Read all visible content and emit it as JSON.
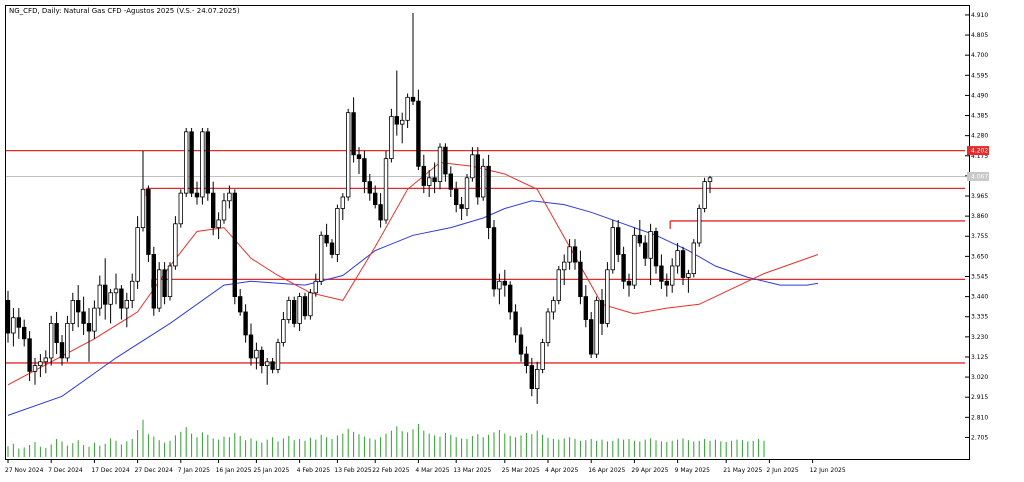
{
  "window": {
    "title": "NG_CFD, Daily:  Natural Gas CFD -Agustos 2025 (V.S.- 24.07.2025)"
  },
  "colors": {
    "background": "#ffffff",
    "candle_up_body": "#ffffff",
    "candle_down_body": "#000000",
    "candle_outline": "#000000",
    "ma_fast": "#e8302a",
    "ma_slow": "#2d3bd8",
    "level_line": "#e52a2a",
    "current_price_line": "#c0c0c0",
    "volume": "#2ca02c",
    "highlight_label_bg": "#e52a2a",
    "current_label_bg": "#c8c8c8"
  },
  "chart_data": {
    "type": "candlestick",
    "title": "NG_CFD, Daily:  Natural Gas CFD -Agustos 2025 (V.S.- 24.07.2025)",
    "ylim": [
      2.65,
      4.92
    ],
    "y_ticks": [
      "4.910",
      "4.805",
      "4.700",
      "4.595",
      "4.490",
      "4.385",
      "4.280",
      "4.175",
      "4.070",
      "3.965",
      "3.860",
      "3.755",
      "3.650",
      "3.545",
      "3.440",
      "3.335",
      "3.230",
      "3.125",
      "3.020",
      "2.915",
      "2.810",
      "2.705"
    ],
    "highlighted_price_label": "4.202",
    "current_price_label": "4.067",
    "x_labels": [
      {
        "label": "27 Nov 2024",
        "index": 0
      },
      {
        "label": "7 Dec 2024",
        "index": 8
      },
      {
        "label": "17 Dec 2024",
        "index": 16
      },
      {
        "label": "27 Dec 2024",
        "index": 24
      },
      {
        "label": "7 Jan 2025",
        "index": 32
      },
      {
        "label": "16 Jan 2025",
        "index": 39
      },
      {
        "label": "25 Jan 2025",
        "index": 46
      },
      {
        "label": "4 Feb 2025",
        "index": 54
      },
      {
        "label": "13 Feb 2025",
        "index": 61
      },
      {
        "label": "22 Feb 2025",
        "index": 68
      },
      {
        "label": "4 Mar 2025",
        "index": 76
      },
      {
        "label": "13 Mar 2025",
        "index": 83
      },
      {
        "label": "25 Mar 2025",
        "index": 92
      },
      {
        "label": "4 Apr 2025",
        "index": 100
      },
      {
        "label": "16 Apr 2025",
        "index": 108
      },
      {
        "label": "29 Apr 2025",
        "index": 116
      },
      {
        "label": "9 May 2025",
        "index": 124
      },
      {
        "label": "21 May 2025",
        "index": 133
      },
      {
        "label": "2 Jun 2025",
        "index": 141
      },
      {
        "label": "12 Jun 2025",
        "index": 149
      }
    ],
    "horizontal_levels": [
      {
        "price": 4.202,
        "from_index": 0
      },
      {
        "price": 4.005,
        "from_index": 26
      },
      {
        "price": 3.835,
        "from_index": 123
      },
      {
        "price": 3.53,
        "from_index": 27
      },
      {
        "price": 3.094,
        "from_index": 0
      }
    ],
    "series": [
      {
        "name": "",
        "kind": "ohlc",
        "values": [
          [
            3.42,
            3.47,
            3.2,
            3.25
          ],
          [
            3.25,
            3.38,
            3.18,
            3.33
          ],
          [
            3.33,
            3.38,
            3.22,
            3.28
          ],
          [
            3.28,
            3.32,
            3.18,
            3.22
          ],
          [
            3.22,
            3.26,
            3.0,
            3.05
          ],
          [
            3.05,
            3.12,
            2.98,
            3.08
          ],
          [
            3.08,
            3.14,
            3.02,
            3.1
          ],
          [
            3.1,
            3.16,
            3.04,
            3.12
          ],
          [
            3.12,
            3.34,
            3.08,
            3.3
          ],
          [
            3.3,
            3.36,
            3.14,
            3.2
          ],
          [
            3.2,
            3.24,
            3.08,
            3.12
          ],
          [
            3.12,
            3.34,
            3.1,
            3.3
          ],
          [
            3.3,
            3.46,
            3.26,
            3.42
          ],
          [
            3.42,
            3.5,
            3.28,
            3.36
          ],
          [
            3.36,
            3.44,
            3.24,
            3.3
          ],
          [
            3.3,
            3.38,
            3.1,
            3.26
          ],
          [
            3.26,
            3.42,
            3.22,
            3.38
          ],
          [
            3.38,
            3.55,
            3.34,
            3.5
          ],
          [
            3.5,
            3.64,
            3.32,
            3.4
          ],
          [
            3.4,
            3.48,
            3.3,
            3.46
          ],
          [
            3.46,
            3.56,
            3.4,
            3.48
          ],
          [
            3.48,
            3.5,
            3.32,
            3.38
          ],
          [
            3.38,
            3.46,
            3.28,
            3.42
          ],
          [
            3.42,
            3.56,
            3.38,
            3.52
          ],
          [
            3.52,
            3.86,
            3.48,
            3.8
          ],
          [
            3.8,
            4.2,
            3.78,
            4.0
          ],
          [
            4.0,
            4.02,
            3.62,
            3.66
          ],
          [
            3.66,
            3.7,
            3.34,
            3.38
          ],
          [
            3.38,
            3.62,
            3.36,
            3.58
          ],
          [
            3.58,
            3.62,
            3.4,
            3.44
          ],
          [
            3.44,
            3.62,
            3.42,
            3.6
          ],
          [
            3.6,
            3.86,
            3.58,
            3.82
          ],
          [
            3.82,
            4.0,
            3.8,
            3.98
          ],
          [
            3.98,
            4.32,
            3.96,
            4.3
          ],
          [
            4.3,
            4.32,
            3.96,
            3.98
          ],
          [
            3.98,
            4.04,
            3.92,
            3.96
          ],
          [
            3.96,
            4.32,
            3.92,
            4.3
          ],
          [
            4.3,
            4.32,
            3.94,
            3.98
          ],
          [
            3.98,
            4.04,
            3.76,
            3.8
          ],
          [
            3.8,
            3.88,
            3.74,
            3.84
          ],
          [
            3.84,
            3.98,
            3.82,
            3.94
          ],
          [
            3.94,
            4.02,
            3.9,
            3.98
          ],
          [
            3.98,
            4.0,
            3.4,
            3.44
          ],
          [
            3.44,
            3.48,
            3.34,
            3.36
          ],
          [
            3.36,
            3.4,
            3.2,
            3.24
          ],
          [
            3.24,
            3.3,
            3.08,
            3.12
          ],
          [
            3.12,
            3.2,
            3.06,
            3.16
          ],
          [
            3.16,
            3.18,
            3.04,
            3.08
          ],
          [
            3.08,
            3.12,
            2.98,
            3.1
          ],
          [
            3.1,
            3.12,
            3.04,
            3.06
          ],
          [
            3.06,
            3.22,
            3.04,
            3.2
          ],
          [
            3.2,
            3.36,
            3.18,
            3.32
          ],
          [
            3.32,
            3.44,
            3.3,
            3.42
          ],
          [
            3.42,
            3.44,
            3.28,
            3.3
          ],
          [
            3.3,
            3.46,
            3.26,
            3.44
          ],
          [
            3.44,
            3.46,
            3.32,
            3.34
          ],
          [
            3.34,
            3.48,
            3.32,
            3.46
          ],
          [
            3.46,
            3.56,
            3.44,
            3.52
          ],
          [
            3.52,
            3.78,
            3.5,
            3.76
          ],
          [
            3.76,
            3.82,
            3.7,
            3.72
          ],
          [
            3.72,
            3.74,
            3.64,
            3.66
          ],
          [
            3.66,
            3.92,
            3.62,
            3.9
          ],
          [
            3.9,
            3.98,
            3.84,
            3.96
          ],
          [
            3.96,
            4.42,
            3.94,
            4.4
          ],
          [
            4.4,
            4.48,
            4.14,
            4.18
          ],
          [
            4.18,
            4.22,
            4.08,
            4.16
          ],
          [
            4.16,
            4.2,
            3.98,
            4.04
          ],
          [
            4.04,
            4.08,
            3.94,
            3.98
          ],
          [
            3.98,
            4.02,
            3.9,
            3.92
          ],
          [
            3.92,
            3.98,
            3.8,
            3.84
          ],
          [
            3.84,
            4.2,
            3.82,
            4.16
          ],
          [
            4.16,
            4.42,
            4.14,
            4.38
          ],
          [
            4.38,
            4.62,
            4.28,
            4.34
          ],
          [
            4.34,
            4.4,
            4.24,
            4.36
          ],
          [
            4.36,
            4.5,
            4.32,
            4.48
          ],
          [
            4.48,
            4.92,
            4.44,
            4.46
          ],
          [
            4.46,
            4.52,
            4.1,
            4.12
          ],
          [
            4.12,
            4.18,
            3.98,
            4.02
          ],
          [
            4.02,
            4.1,
            3.96,
            4.06
          ],
          [
            4.06,
            4.14,
            3.98,
            4.04
          ],
          [
            4.04,
            4.24,
            4.0,
            4.22
          ],
          [
            4.22,
            4.24,
            4.04,
            4.08
          ],
          [
            4.08,
            4.12,
            3.96,
            4.0
          ],
          [
            4.0,
            4.04,
            3.88,
            3.92
          ],
          [
            3.92,
            3.96,
            3.84,
            3.9
          ],
          [
            3.9,
            4.08,
            3.86,
            4.06
          ],
          [
            4.06,
            4.22,
            4.04,
            4.18
          ],
          [
            4.18,
            4.22,
            3.92,
            3.96
          ],
          [
            3.96,
            4.16,
            3.94,
            4.12
          ],
          [
            4.12,
            4.18,
            3.74,
            3.8
          ],
          [
            3.8,
            3.84,
            3.44,
            3.48
          ],
          [
            3.48,
            3.56,
            3.4,
            3.52
          ],
          [
            3.52,
            3.58,
            3.44,
            3.5
          ],
          [
            3.5,
            3.52,
            3.32,
            3.36
          ],
          [
            3.36,
            3.4,
            3.2,
            3.24
          ],
          [
            3.24,
            3.28,
            3.1,
            3.14
          ],
          [
            3.14,
            3.18,
            3.04,
            3.08
          ],
          [
            3.08,
            3.12,
            2.92,
            2.96
          ],
          [
            2.96,
            3.1,
            2.88,
            3.06
          ],
          [
            3.06,
            3.22,
            3.04,
            3.2
          ],
          [
            3.2,
            3.38,
            3.18,
            3.36
          ],
          [
            3.36,
            3.44,
            3.32,
            3.42
          ],
          [
            3.42,
            3.6,
            3.4,
            3.58
          ],
          [
            3.58,
            3.66,
            3.5,
            3.62
          ],
          [
            3.62,
            3.74,
            3.58,
            3.7
          ],
          [
            3.7,
            3.74,
            3.58,
            3.62
          ],
          [
            3.62,
            3.68,
            3.4,
            3.44
          ],
          [
            3.44,
            3.5,
            3.28,
            3.32
          ],
          [
            3.32,
            3.36,
            3.12,
            3.14
          ],
          [
            3.14,
            3.44,
            3.12,
            3.42
          ],
          [
            3.42,
            3.48,
            3.24,
            3.3
          ],
          [
            3.3,
            3.62,
            3.28,
            3.58
          ],
          [
            3.58,
            3.84,
            3.56,
            3.8
          ],
          [
            3.8,
            3.84,
            3.62,
            3.66
          ],
          [
            3.66,
            3.7,
            3.48,
            3.52
          ],
          [
            3.52,
            3.56,
            3.44,
            3.5
          ],
          [
            3.5,
            3.8,
            3.48,
            3.76
          ],
          [
            3.76,
            3.84,
            3.7,
            3.72
          ],
          [
            3.72,
            3.76,
            3.6,
            3.64
          ],
          [
            3.64,
            3.82,
            3.5,
            3.78
          ],
          [
            3.78,
            3.8,
            3.56,
            3.6
          ],
          [
            3.6,
            3.66,
            3.48,
            3.52
          ],
          [
            3.52,
            3.56,
            3.44,
            3.5
          ],
          [
            3.5,
            3.64,
            3.46,
            3.6
          ],
          [
            3.6,
            3.72,
            3.56,
            3.68
          ],
          [
            3.68,
            3.7,
            3.5,
            3.54
          ],
          [
            3.54,
            3.58,
            3.46,
            3.56
          ],
          [
            3.56,
            3.74,
            3.54,
            3.72
          ],
          [
            3.72,
            3.92,
            3.7,
            3.9
          ],
          [
            3.9,
            4.06,
            3.88,
            4.04
          ],
          [
            4.04,
            4.07,
            3.98,
            4.06
          ]
        ]
      },
      {
        "name": "",
        "kind": "moving_average",
        "values": [
          [
            0,
            2.82
          ],
          [
            10,
            2.92
          ],
          [
            20,
            3.12
          ],
          [
            30,
            3.3
          ],
          [
            40,
            3.5
          ],
          [
            45,
            3.52
          ],
          [
            55,
            3.5
          ],
          [
            62,
            3.55
          ],
          [
            68,
            3.68
          ],
          [
            75,
            3.76
          ],
          [
            82,
            3.8
          ],
          [
            88,
            3.85
          ],
          [
            92,
            3.9
          ],
          [
            97,
            3.94
          ],
          [
            103,
            3.92
          ],
          [
            108,
            3.88
          ],
          [
            114,
            3.82
          ],
          [
            120,
            3.76
          ],
          [
            126,
            3.68
          ],
          [
            131,
            3.6
          ],
          [
            137,
            3.54
          ],
          [
            143,
            3.5
          ],
          [
            148,
            3.5
          ],
          [
            150,
            3.51
          ]
        ]
      },
      {
        "name": "",
        "kind": "moving_average",
        "values": [
          [
            0,
            2.98
          ],
          [
            8,
            3.1
          ],
          [
            16,
            3.22
          ],
          [
            24,
            3.36
          ],
          [
            30,
            3.6
          ],
          [
            35,
            3.78
          ],
          [
            40,
            3.8
          ],
          [
            45,
            3.64
          ],
          [
            50,
            3.55
          ],
          [
            56,
            3.46
          ],
          [
            62,
            3.42
          ],
          [
            68,
            3.7
          ],
          [
            74,
            4.0
          ],
          [
            80,
            4.14
          ],
          [
            86,
            4.12
          ],
          [
            92,
            4.08
          ],
          [
            98,
            4.0
          ],
          [
            104,
            3.7
          ],
          [
            110,
            3.4
          ],
          [
            116,
            3.35
          ],
          [
            122,
            3.38
          ],
          [
            128,
            3.4
          ],
          [
            134,
            3.48
          ],
          [
            140,
            3.56
          ],
          [
            146,
            3.62
          ],
          [
            150,
            3.66
          ]
        ]
      }
    ],
    "volume": [
      18,
      22,
      14,
      16,
      20,
      25,
      17,
      15,
      21,
      30,
      26,
      19,
      23,
      28,
      20,
      17,
      24,
      19,
      22,
      31,
      27,
      21,
      26,
      30,
      45,
      62,
      38,
      34,
      28,
      24,
      27,
      36,
      42,
      50,
      39,
      33,
      41,
      37,
      31,
      29,
      34,
      33,
      40,
      35,
      28,
      31,
      27,
      24,
      29,
      33,
      26,
      31,
      35,
      28,
      30,
      27,
      32,
      29,
      37,
      33,
      30,
      36,
      39,
      47,
      42,
      38,
      34,
      31,
      29,
      33,
      39,
      44,
      51,
      43,
      41,
      46,
      55,
      44,
      39,
      36,
      34,
      40,
      37,
      33,
      31,
      30,
      35,
      38,
      33,
      37,
      41,
      45,
      39,
      35,
      33,
      36,
      40,
      38,
      44,
      37,
      32,
      30,
      29,
      31,
      33,
      30,
      27,
      28,
      30,
      27,
      29,
      26,
      27,
      31,
      29,
      30,
      27,
      26,
      29,
      31,
      28,
      26,
      25,
      27,
      29,
      31,
      28,
      26,
      27,
      30,
      27,
      29,
      26,
      25,
      27,
      29,
      28,
      26,
      27,
      30,
      27
    ]
  }
}
